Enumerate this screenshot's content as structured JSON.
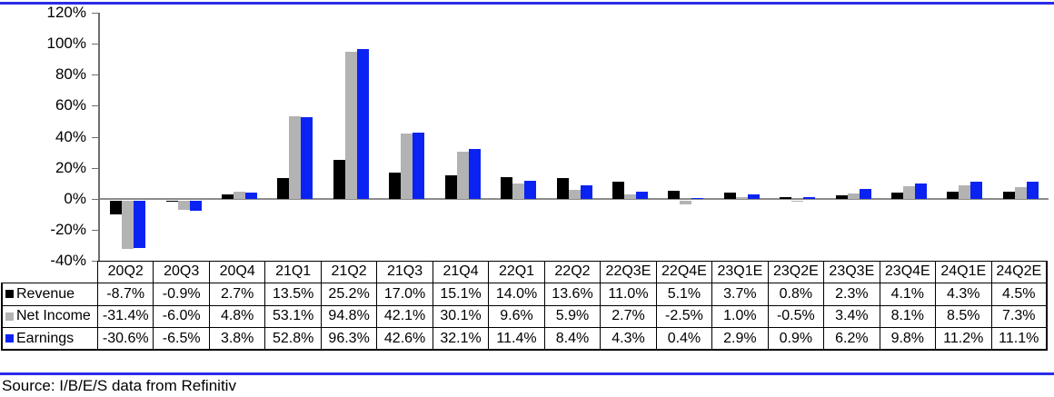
{
  "chart_data": {
    "type": "bar",
    "title": "",
    "xlabel": "",
    "ylabel": "",
    "categories": [
      "20Q2",
      "20Q3",
      "20Q4",
      "21Q1",
      "21Q2",
      "21Q3",
      "21Q4",
      "22Q1",
      "22Q2",
      "22Q3E",
      "22Q4E",
      "23Q1E",
      "23Q2E",
      "23Q3E",
      "23Q4E",
      "24Q1E",
      "24Q2E"
    ],
    "series": [
      {
        "name": "Revenue",
        "color": "#000000",
        "values": [
          -8.7,
          -0.9,
          2.7,
          13.5,
          25.2,
          17.0,
          15.1,
          14.0,
          13.6,
          11.0,
          5.1,
          3.7,
          0.8,
          2.3,
          4.1,
          4.3,
          4.5
        ]
      },
      {
        "name": "Net Income",
        "color": "#b3b3b3",
        "values": [
          -31.4,
          -6.0,
          4.8,
          53.1,
          94.8,
          42.1,
          30.1,
          9.6,
          5.9,
          2.7,
          -2.5,
          1.0,
          -0.5,
          3.4,
          8.1,
          8.5,
          7.3
        ]
      },
      {
        "name": "Earnings",
        "color": "#0b23f2",
        "values": [
          -30.6,
          -6.5,
          3.8,
          52.8,
          96.3,
          42.6,
          32.1,
          11.4,
          8.4,
          4.3,
          0.4,
          2.9,
          0.9,
          6.2,
          9.8,
          11.2,
          11.1
        ]
      }
    ],
    "ylim": [
      -40,
      120
    ],
    "y_tick_step": 20,
    "y_tick_labels": [
      "120%",
      "100%",
      "80%",
      "60%",
      "40%",
      "20%",
      "0%",
      "-20%",
      "-40%"
    ],
    "grid": false,
    "legend_position": "table-row-headers",
    "value_suffix": "%",
    "value_decimals": 1
  },
  "source_note": "Source: I/B/E/S data from Refinitiv",
  "accent_rule_color": "#2b2be8"
}
